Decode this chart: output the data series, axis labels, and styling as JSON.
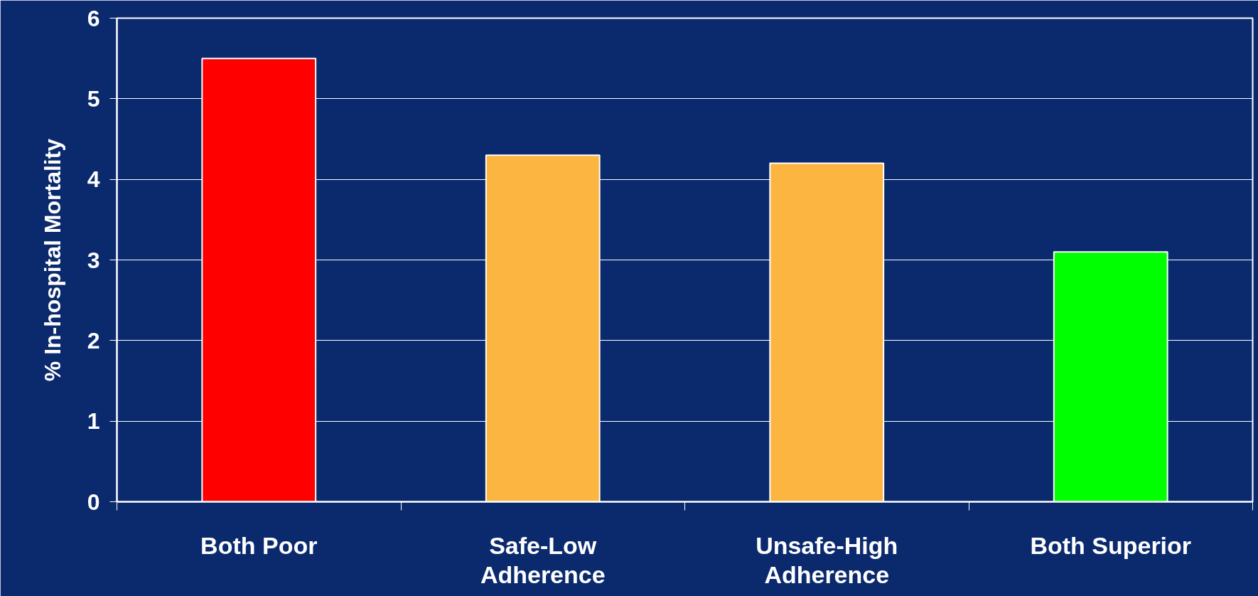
{
  "chart_data": {
    "type": "bar",
    "ylabel": "% In-hospital Mortality",
    "categories": [
      "Both Poor",
      "Safe-Low\nAdherence",
      "Unsafe-High\nAdherence",
      "Both Superior"
    ],
    "values": [
      5.5,
      4.3,
      4.2,
      3.1
    ],
    "colors": [
      "#ff0000",
      "#fbb540",
      "#fbb540",
      "#00ff00"
    ],
    "ylim": [
      0,
      6
    ],
    "yticks": [
      0,
      1,
      2,
      3,
      4,
      5,
      6
    ],
    "grid": "y"
  }
}
